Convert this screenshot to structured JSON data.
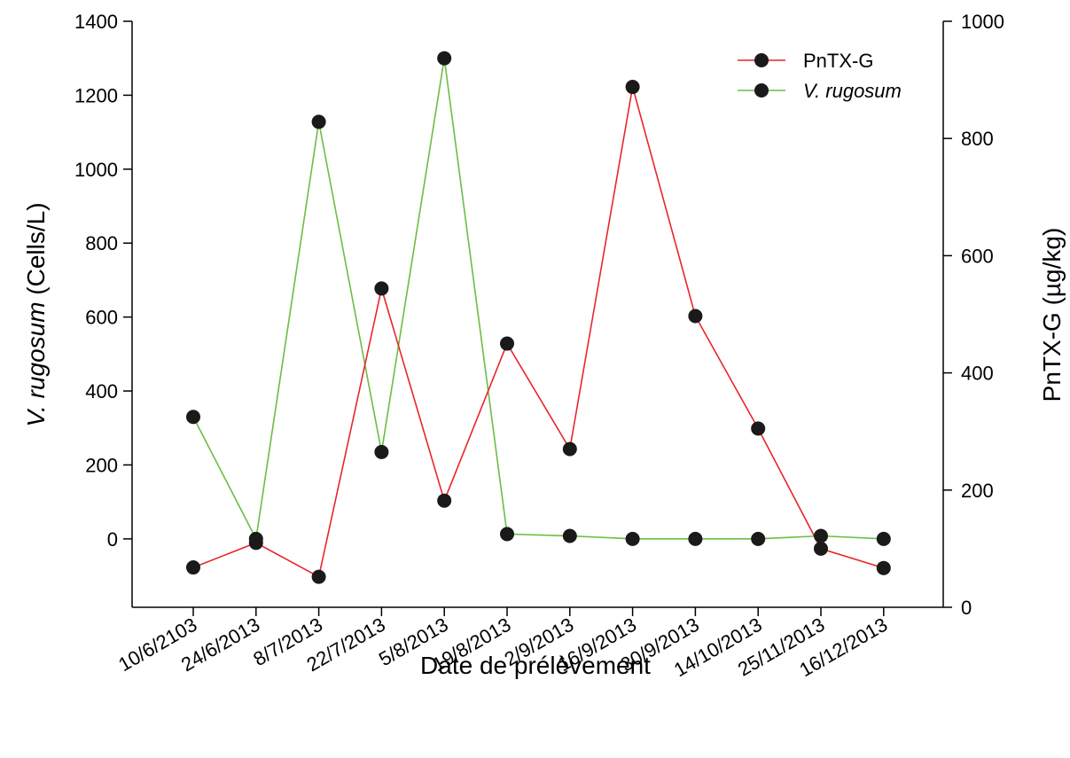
{
  "chart_data": {
    "type": "line",
    "categories": [
      "10/6/2103",
      "24/6/2013",
      "8/7/2013",
      "22/7/2013",
      "5/8/2013",
      "19/8/2013",
      "2/9/2013",
      "16/9/2013",
      "30/9/2013",
      "14/10/2013",
      "25/11/2013",
      "16/12/2013"
    ],
    "xlabel": "Date de prélèvement",
    "ylabel_left": {
      "italic": "V. rugosum",
      "rest": " (Cells/L)"
    },
    "ylabel_right": "PnTX-G (µg/kg)",
    "ylim_left": [
      -185,
      1400
    ],
    "ylim_right": [
      0,
      1000
    ],
    "yticks_left": [
      0,
      200,
      400,
      600,
      800,
      1000,
      1200,
      1400
    ],
    "yticks_right": [
      0,
      200,
      400,
      600,
      800,
      1000
    ],
    "series": [
      {
        "name": "PnTX-G",
        "axis": "right",
        "color": "#e8262b",
        "values": [
          68,
          110,
          52,
          544,
          182,
          450,
          270,
          888,
          497,
          305,
          100,
          67
        ]
      },
      {
        "name": "V. rugosum",
        "name_italic": true,
        "axis": "left",
        "color": "#6cbd45",
        "values": [
          330,
          0,
          1128,
          235,
          1300,
          13,
          8,
          0,
          0,
          0,
          8,
          0
        ]
      }
    ],
    "legend": "top-right",
    "grid": false,
    "marker_color": "#1a1a1a"
  }
}
